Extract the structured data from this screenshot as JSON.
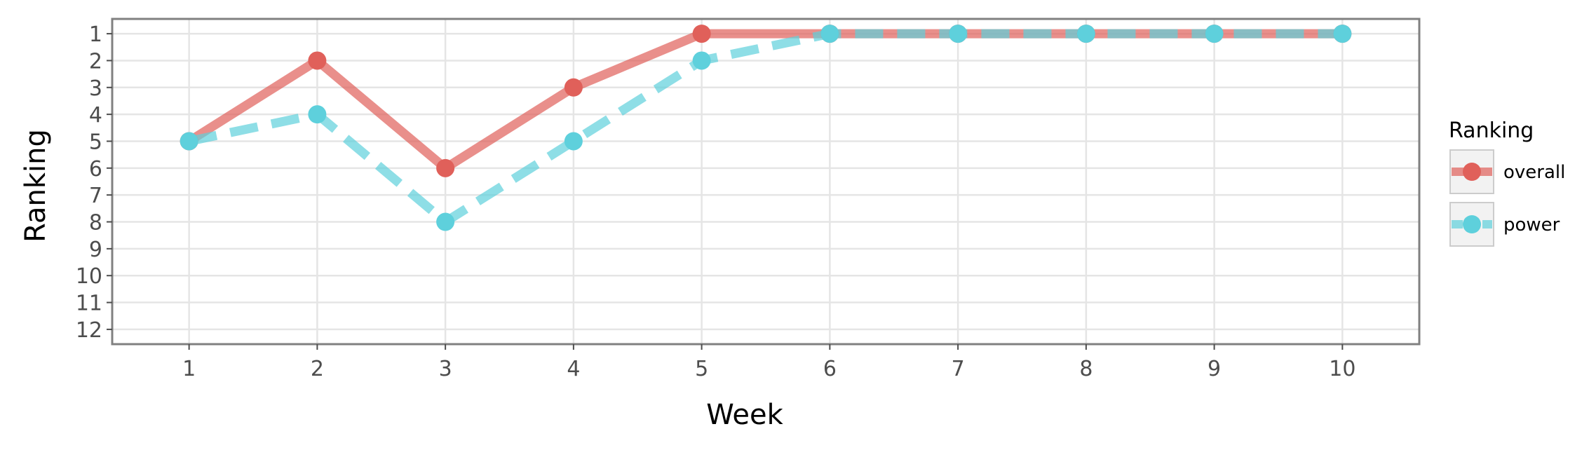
{
  "chart_data": {
    "type": "line",
    "xlabel": "Week",
    "ylabel": "Ranking",
    "x": [
      1,
      2,
      3,
      4,
      5,
      6,
      7,
      8,
      9,
      10
    ],
    "xlim": [
      0.4,
      10.6
    ],
    "ylim": [
      12.55,
      0.45
    ],
    "y_reversed": true,
    "x_ticks": [
      "1",
      "2",
      "3",
      "4",
      "5",
      "6",
      "7",
      "8",
      "9",
      "10"
    ],
    "y_ticks": [
      "1",
      "2",
      "3",
      "4",
      "5",
      "6",
      "7",
      "8",
      "9",
      "10",
      "11",
      "12"
    ],
    "grid": true,
    "legend": {
      "title": "Ranking",
      "position": "right"
    },
    "series": [
      {
        "name": "overall",
        "values": [
          5,
          2,
          6,
          3,
          1,
          1,
          1,
          1,
          1,
          1
        ],
        "color": "#E0605A",
        "linestyle": "solid"
      },
      {
        "name": "power",
        "values": [
          5,
          4,
          8,
          5,
          2,
          1,
          1,
          1,
          1,
          1
        ],
        "color": "#5ED0DC",
        "linestyle": "dashed"
      }
    ]
  }
}
